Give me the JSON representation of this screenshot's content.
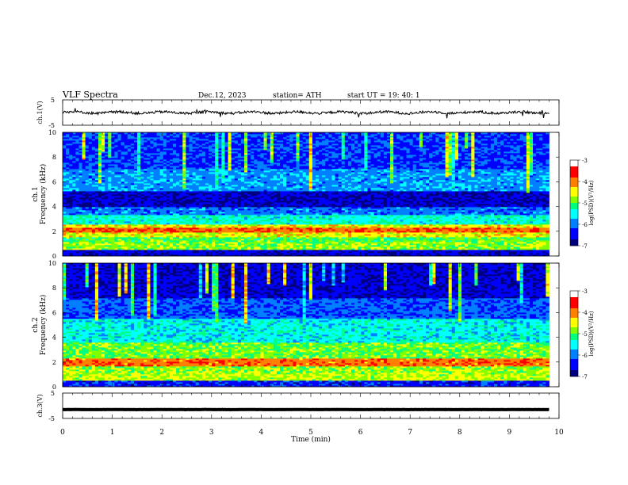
{
  "header": {
    "title": "VLF  Spectra",
    "date": "Dec.12, 2023",
    "station": "station= ATH",
    "start": "start  UT  =    19: 40: 1"
  },
  "chart_data": [
    {
      "type": "line",
      "panel": "ch1-waveform",
      "ylabel": "ch.1(V)",
      "yticks": [
        "5",
        "-5"
      ],
      "ylim": [
        -5,
        5
      ],
      "xlim": [
        0,
        10
      ],
      "data_end_min": 9.8,
      "mean_level_V": 0,
      "series_color": "#000000"
    },
    {
      "type": "heatmap",
      "panel": "ch1-spectrogram",
      "ylabel_top": "ch.1",
      "ylabel": "Frequency  (kHz)",
      "yticks": [
        "10",
        "8",
        "6",
        "4",
        "2",
        "0"
      ],
      "ylim_kHz": [
        0,
        10
      ],
      "xlim_min": [
        0,
        10
      ],
      "data_end_min": 9.8,
      "colorbar_label": "log(PSD)(V²/Hz)",
      "colorbar_ticks": [
        "-3",
        "-4",
        "-5",
        "-6",
        "-7"
      ],
      "bands": [
        {
          "f_kHz": [
            0.0,
            0.45
          ],
          "level": 0.1
        },
        {
          "f_kHz": [
            0.45,
            1.1
          ],
          "level": 0.55
        },
        {
          "f_kHz": [
            1.1,
            1.6
          ],
          "level": 0.5
        },
        {
          "f_kHz": [
            1.6,
            1.9
          ],
          "level": 0.62
        },
        {
          "f_kHz": [
            1.9,
            2.25
          ],
          "level": 0.78
        },
        {
          "f_kHz": [
            2.25,
            2.6
          ],
          "level": 0.62
        },
        {
          "f_kHz": [
            2.6,
            3.3
          ],
          "level": 0.4
        },
        {
          "f_kHz": [
            3.3,
            4.0
          ],
          "level": 0.25
        },
        {
          "f_kHz": [
            4.0,
            5.2
          ],
          "level": 0.08
        },
        {
          "f_kHz": [
            5.2,
            7.0
          ],
          "level": 0.28
        },
        {
          "f_kHz": [
            7.0,
            10.0
          ],
          "level": 0.18
        }
      ]
    },
    {
      "type": "heatmap",
      "panel": "ch2-spectrogram",
      "ylabel_top": "ch.2",
      "ylabel": "Frequency  (kHz)",
      "yticks": [
        "10",
        "8",
        "6",
        "4",
        "2",
        "0"
      ],
      "ylim_kHz": [
        0,
        10
      ],
      "xlim_min": [
        0,
        10
      ],
      "data_end_min": 9.8,
      "colorbar_label": "log(PSD)(V²/Hz)",
      "colorbar_ticks": [
        "-3",
        "-4",
        "-5",
        "-6",
        "-7"
      ],
      "bands": [
        {
          "f_kHz": [
            0.0,
            0.5
          ],
          "level": 0.15
        },
        {
          "f_kHz": [
            0.5,
            1.2
          ],
          "level": 0.58
        },
        {
          "f_kHz": [
            1.2,
            1.7
          ],
          "level": 0.55
        },
        {
          "f_kHz": [
            1.7,
            2.3
          ],
          "level": 0.76
        },
        {
          "f_kHz": [
            2.3,
            3.6
          ],
          "level": 0.52
        },
        {
          "f_kHz": [
            3.6,
            5.5
          ],
          "level": 0.38
        },
        {
          "f_kHz": [
            5.5,
            7.2
          ],
          "level": 0.22
        },
        {
          "f_kHz": [
            7.2,
            10.0
          ],
          "level": 0.1
        }
      ]
    },
    {
      "type": "line",
      "panel": "ch3-waveform",
      "ylabel": "ch.3(V)",
      "yticks": [
        "5",
        "-5"
      ],
      "ylim": [
        -5,
        5
      ],
      "xlim": [
        0,
        10
      ],
      "data_end_min": 9.8,
      "mean_level_V": -1.5,
      "series_color": "#000000"
    }
  ],
  "xaxis": {
    "label": "Time  (min)",
    "ticks": [
      "0",
      "1",
      "2",
      "3",
      "4",
      "5",
      "6",
      "7",
      "8",
      "9",
      "10"
    ]
  },
  "colormap": [
    "#000000",
    "#00007f",
    "#0000ff",
    "#0080ff",
    "#00ffff",
    "#00ff80",
    "#80ff00",
    "#ffff00",
    "#ff8000",
    "#ff0000",
    "#ffffff"
  ]
}
